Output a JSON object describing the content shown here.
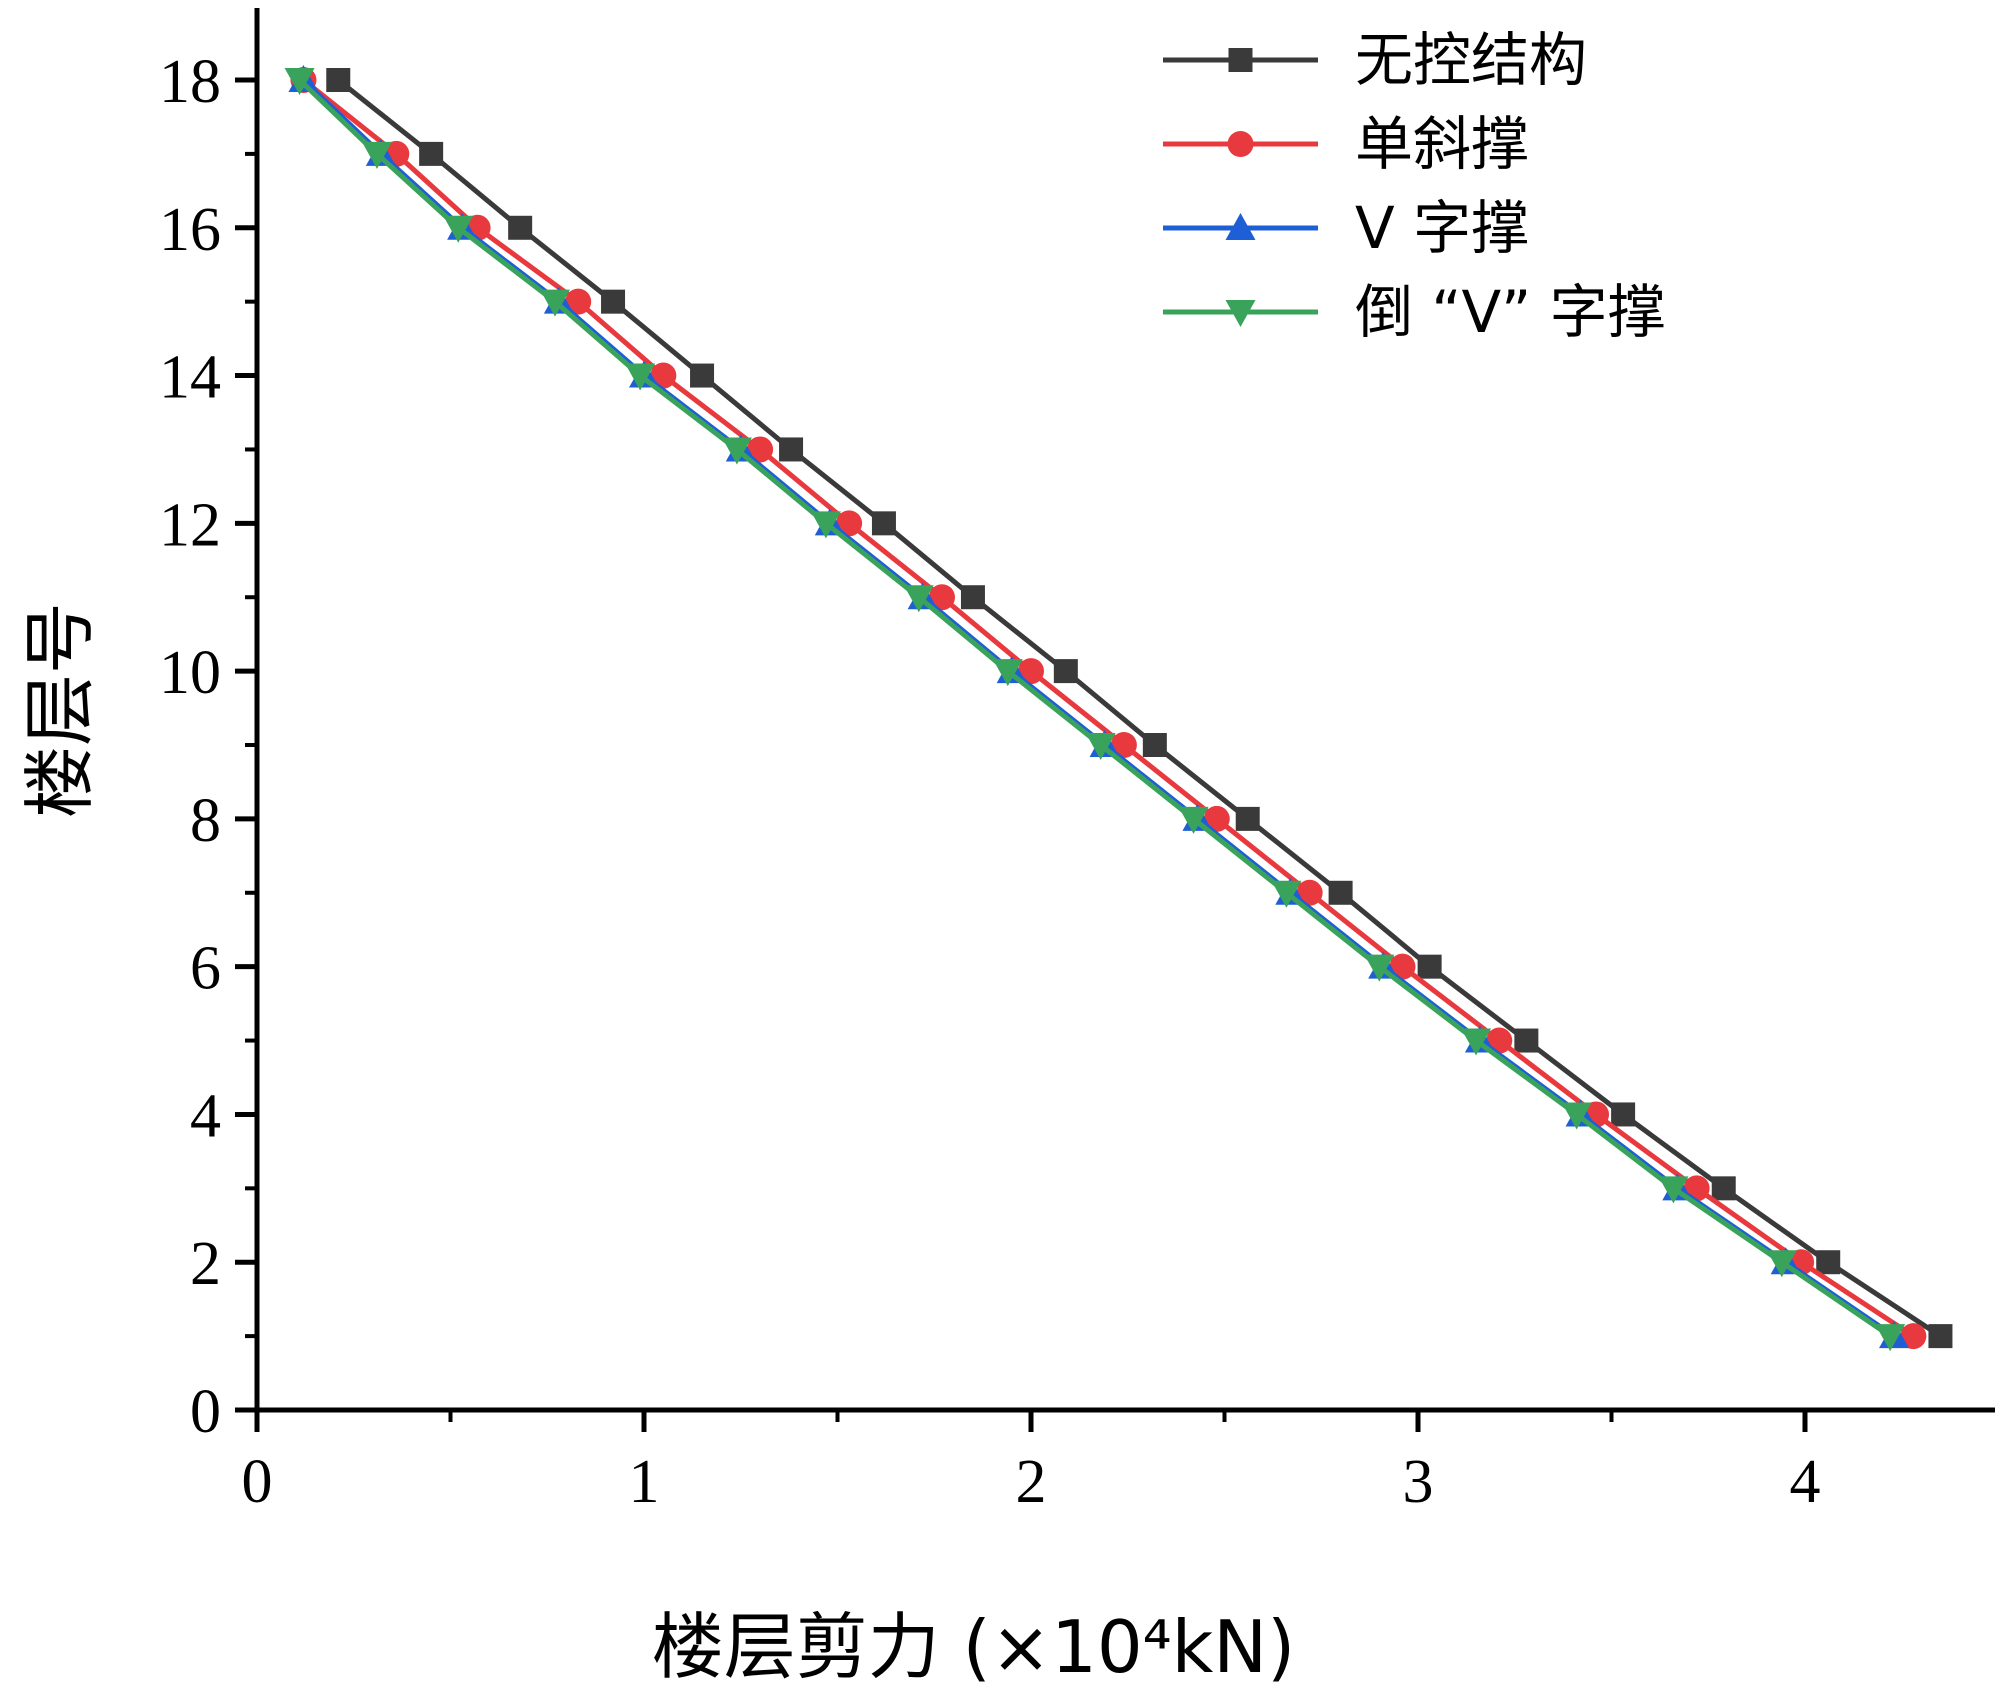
{
  "chart_data": {
    "type": "line",
    "xlabel": "楼层剪力 (×10⁴kN)",
    "ylabel": "楼层号",
    "xlim": [
      0,
      4.5
    ],
    "ylim": [
      0,
      19
    ],
    "xticks": [
      0,
      1,
      2,
      3,
      4
    ],
    "yticks": [
      0,
      2,
      4,
      6,
      8,
      10,
      12,
      14,
      16,
      18
    ],
    "grid": false,
    "legend_position": "top-right",
    "y": [
      1,
      2,
      3,
      4,
      5,
      6,
      7,
      8,
      9,
      10,
      11,
      12,
      13,
      14,
      15,
      16,
      17,
      18
    ],
    "series": [
      {
        "name": "无控结构",
        "color": "#3a3a3a",
        "marker": "square",
        "x": [
          4.35,
          4.06,
          3.79,
          3.53,
          3.28,
          3.03,
          2.8,
          2.56,
          2.32,
          2.09,
          1.85,
          1.62,
          1.38,
          1.15,
          0.92,
          0.68,
          0.45,
          0.21
        ]
      },
      {
        "name": "单斜撑",
        "color": "#e8393f",
        "marker": "circle",
        "x": [
          4.28,
          3.99,
          3.72,
          3.46,
          3.21,
          2.96,
          2.72,
          2.48,
          2.24,
          2.0,
          1.77,
          1.53,
          1.3,
          1.05,
          0.83,
          0.57,
          0.36,
          0.12
        ]
      },
      {
        "name": "V 字撑",
        "color": "#1f5fd6",
        "marker": "triangle-up",
        "x": [
          4.23,
          3.95,
          3.67,
          3.42,
          3.16,
          2.91,
          2.67,
          2.43,
          2.19,
          1.95,
          1.72,
          1.48,
          1.25,
          1.0,
          0.78,
          0.53,
          0.32,
          0.12
        ]
      },
      {
        "name": "倒 “V” 字撑",
        "color": "#3aa35b",
        "marker": "triangle-down",
        "x": [
          4.22,
          3.94,
          3.66,
          3.41,
          3.15,
          2.9,
          2.66,
          2.42,
          2.18,
          1.94,
          1.71,
          1.47,
          1.24,
          0.99,
          0.77,
          0.52,
          0.31,
          0.11
        ]
      }
    ]
  }
}
